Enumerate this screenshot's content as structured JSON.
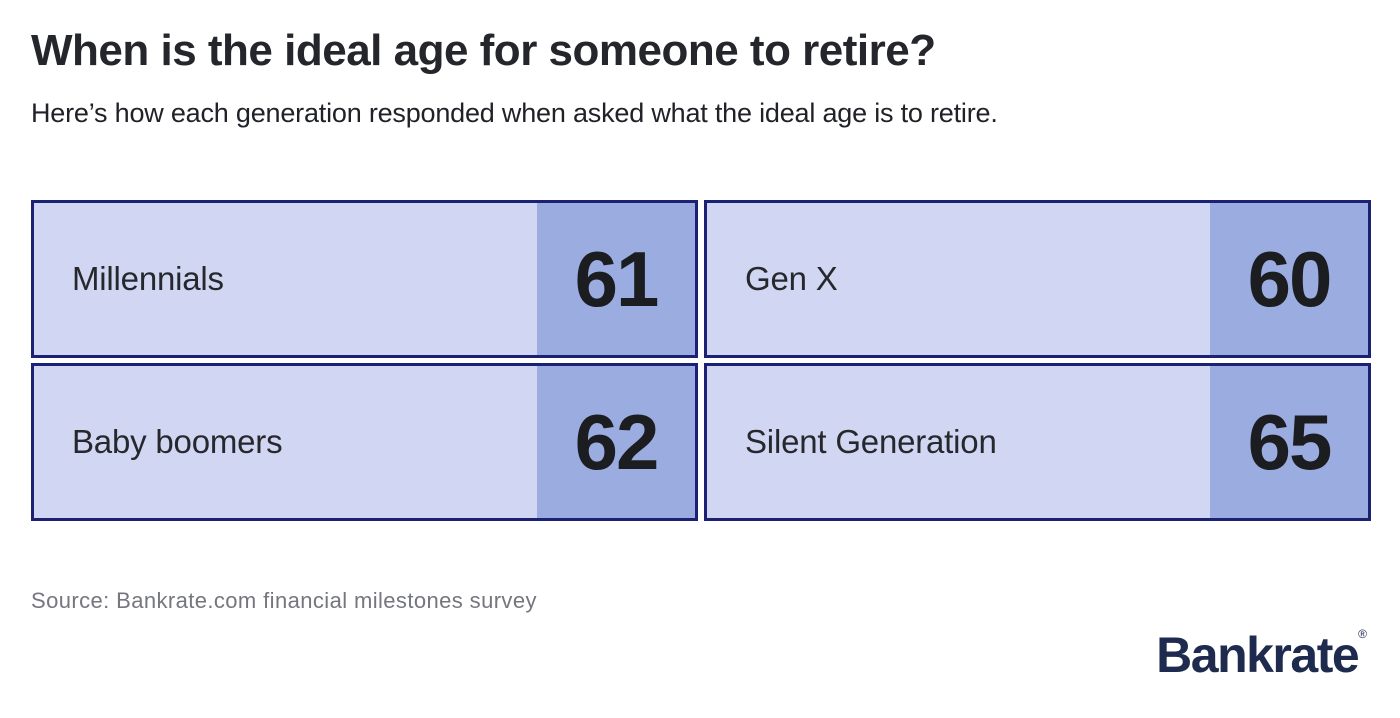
{
  "header": {
    "title": "When is the ideal age for someone to retire?",
    "subtitle": "Here’s how each generation responded when asked what the ideal age is to retire."
  },
  "cards": [
    {
      "label": "Millennials",
      "value": "61"
    },
    {
      "label": "Gen X",
      "value": "60"
    },
    {
      "label": "Baby boomers",
      "value": "62"
    },
    {
      "label": "Silent Generation",
      "value": "65"
    }
  ],
  "footer": {
    "source": "Source: Bankrate.com financial milestones survey",
    "brand": "Bankrate",
    "registered_mark": "®"
  },
  "colors": {
    "card_bg": "#d1d7f2",
    "card_value_bg": "#9aace0",
    "card_border": "#1b2173",
    "brand_navy": "#1e2b4e",
    "title_text": "#24262b",
    "source_gray": "#75767e"
  },
  "chart_data": {
    "type": "table",
    "title": "When is the ideal age for someone to retire?",
    "subtitle": "Here’s how each generation responded when asked what the ideal age is to retire.",
    "categories": [
      "Millennials",
      "Gen X",
      "Baby boomers",
      "Silent Generation"
    ],
    "values": [
      61,
      60,
      62,
      65
    ],
    "value_meaning": "ideal retirement age in years",
    "layout": "2x2 grid of highlight cards, value block right-aligned in each card",
    "legend_position": "none",
    "grid": false,
    "source": "Source: Bankrate.com financial milestones survey"
  }
}
